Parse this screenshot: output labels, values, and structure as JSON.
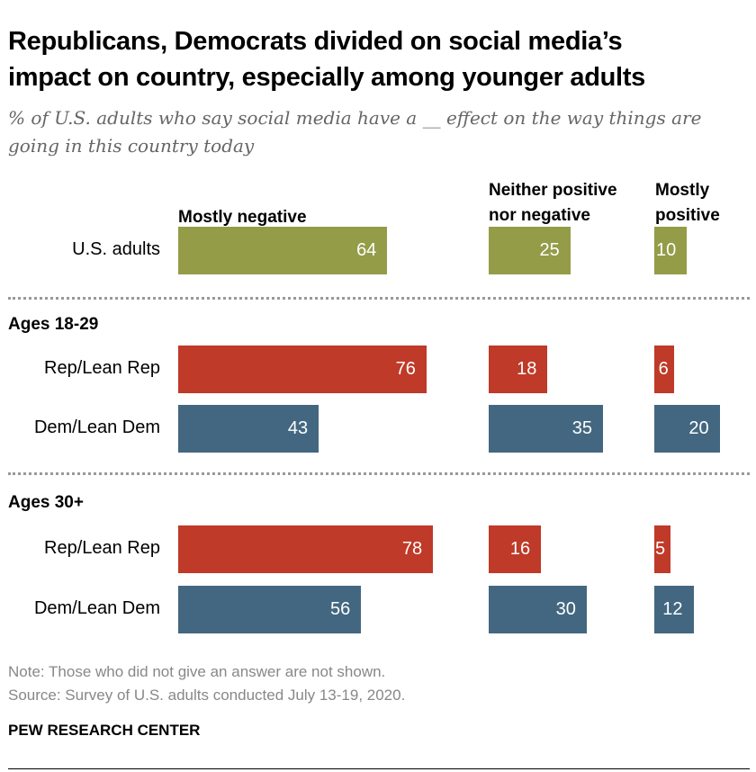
{
  "title_lines": [
    "Republicans, Democrats divided on social media’s",
    "impact on country, especially among younger adults"
  ],
  "subtitle": "% of U.S. adults who say social media have a __ effect on the way things are going in this country today",
  "chart_data": {
    "type": "bar",
    "orientation": "horizontal",
    "columns": [
      "Mostly negative",
      "Neither positive nor negative",
      "Mostly positive"
    ],
    "groups": [
      {
        "label": "",
        "rows": [
          {
            "label": "U.S. adults",
            "color": "#949c48",
            "values": [
              64,
              25,
              10
            ]
          }
        ]
      },
      {
        "label": "Ages 18-29",
        "rows": [
          {
            "label": "Rep/Lean Rep",
            "color": "#bf3a28",
            "values": [
              76,
              18,
              6
            ]
          },
          {
            "label": "Dem/Lean Dem",
            "color": "#436781",
            "values": [
              43,
              35,
              20
            ]
          }
        ]
      },
      {
        "label": "Ages 30+",
        "rows": [
          {
            "label": "Rep/Lean Rep",
            "color": "#bf3a28",
            "values": [
              78,
              16,
              5
            ]
          },
          {
            "label": "Dem/Lean Dem",
            "color": "#436781",
            "values": [
              56,
              30,
              12
            ]
          }
        ]
      }
    ]
  },
  "note": "Note: Those who did not give an answer are not shown.",
  "source": "Source: Survey of U.S. adults conducted July 13-19, 2020.",
  "brand": "PEW RESEARCH CENTER"
}
